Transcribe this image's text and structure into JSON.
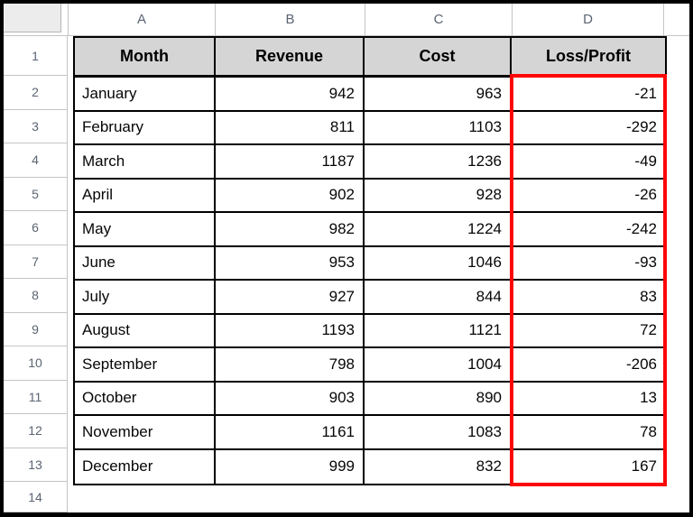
{
  "sheet": {
    "column_letters": [
      "A",
      "B",
      "C",
      "D"
    ],
    "row_numbers": [
      "1",
      "2",
      "3",
      "4",
      "5",
      "6",
      "7",
      "8",
      "9",
      "10",
      "11",
      "12",
      "13",
      "14"
    ]
  },
  "table": {
    "headers": {
      "month": "Month",
      "revenue": "Revenue",
      "cost": "Cost",
      "loss_profit": "Loss/Profit"
    },
    "rows": [
      {
        "month": "January",
        "revenue": 942,
        "cost": 963,
        "loss_profit": -21
      },
      {
        "month": "February",
        "revenue": 811,
        "cost": 1103,
        "loss_profit": -292
      },
      {
        "month": "March",
        "revenue": 1187,
        "cost": 1236,
        "loss_profit": -49
      },
      {
        "month": "April",
        "revenue": 902,
        "cost": 928,
        "loss_profit": -26
      },
      {
        "month": "May",
        "revenue": 982,
        "cost": 1224,
        "loss_profit": -242
      },
      {
        "month": "June",
        "revenue": 953,
        "cost": 1046,
        "loss_profit": -93
      },
      {
        "month": "July",
        "revenue": 927,
        "cost": 844,
        "loss_profit": 83
      },
      {
        "month": "August",
        "revenue": 1193,
        "cost": 1121,
        "loss_profit": 72
      },
      {
        "month": "September",
        "revenue": 798,
        "cost": 1004,
        "loss_profit": -206
      },
      {
        "month": "October",
        "revenue": 903,
        "cost": 890,
        "loss_profit": 13
      },
      {
        "month": "November",
        "revenue": 1161,
        "cost": 1083,
        "loss_profit": 78
      },
      {
        "month": "December",
        "revenue": 999,
        "cost": 832,
        "loss_profit": 167
      }
    ]
  },
  "colors": {
    "highlight_border": "#fe0505",
    "header_fill": "#d5d5d5",
    "grid_line": "#c4c4c4",
    "header_label_text": "#5b6472",
    "cell_border": "#000000",
    "frame": "#000000"
  }
}
